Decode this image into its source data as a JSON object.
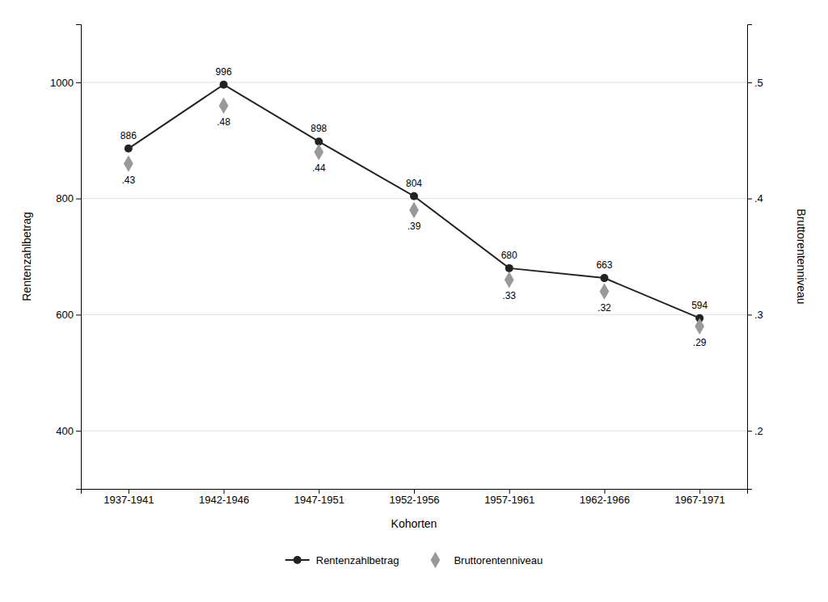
{
  "chart_data": {
    "type": "line",
    "xlabel": "Kohorten",
    "ylabel": "Rentenzahlbetrag",
    "y2label": "Bruttorentenniveau",
    "categories": [
      "1937-1941",
      "1942-1946",
      "1947-1951",
      "1952-1956",
      "1957-1961",
      "1962-1966",
      "1967-1971"
    ],
    "series": [
      {
        "name": "Rentenzahlbetrag",
        "type": "line",
        "color": "#222222",
        "marker": "circle",
        "values": [
          886,
          996,
          898,
          804,
          680,
          663,
          594
        ]
      },
      {
        "name": "Bruttorentenniveau",
        "type": "scatter",
        "color": "#999999",
        "marker": "diamond",
        "axis": "y2",
        "values": [
          0.43,
          0.48,
          0.44,
          0.39,
          0.33,
          0.32,
          0.29
        ],
        "value_labels": [
          ".43",
          ".48",
          ".44",
          ".39",
          ".33",
          ".32",
          ".29"
        ]
      }
    ],
    "ylim": [
      300,
      1100
    ],
    "yticks": [
      400,
      600,
      800,
      1000
    ],
    "y2lim": [
      0.15,
      0.55
    ],
    "y2ticks": [
      {
        "value": 0.2,
        "label": ".2"
      },
      {
        "value": 0.3,
        "label": ".3"
      },
      {
        "value": 0.4,
        "label": ".4"
      },
      {
        "value": 0.5,
        "label": ".5"
      }
    ],
    "grid": true,
    "legend": "bottom",
    "data_labels": true
  }
}
